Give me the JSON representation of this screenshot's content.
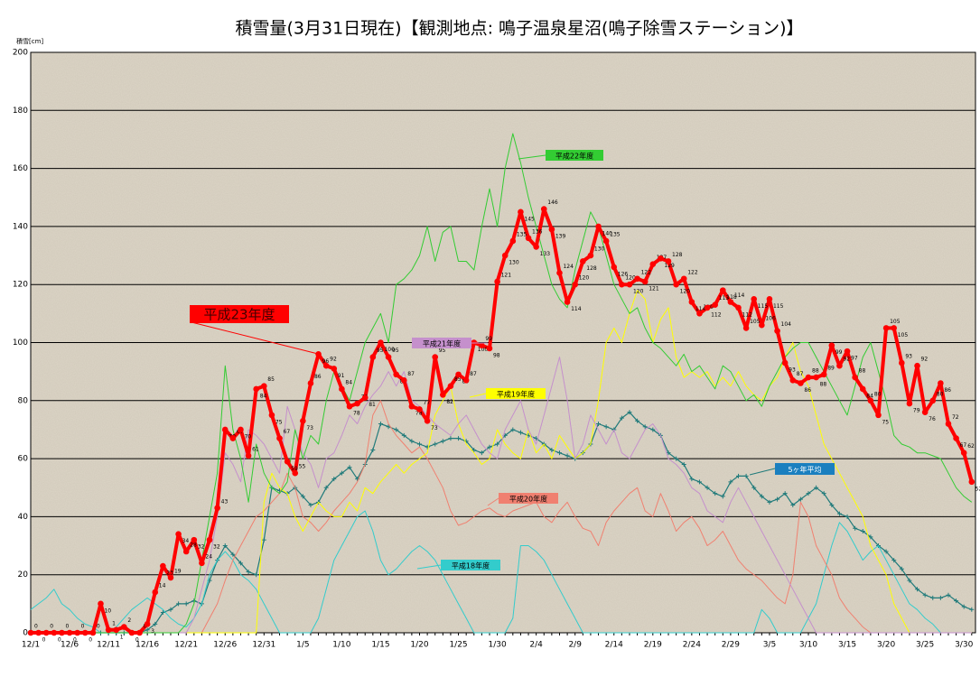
{
  "chart_data": {
    "type": "line",
    "title": "積雪量(3月31日現在)【観測地点: 鳴子温泉星沼(鳴子除雪ステーション)】",
    "y_label": "積雪[cm]",
    "ylim": [
      0,
      200
    ],
    "yticks": [
      0,
      20,
      40,
      60,
      80,
      100,
      120,
      140,
      160,
      180,
      200
    ],
    "grid": true,
    "categories": [
      "12/1",
      null,
      null,
      null,
      null,
      "12/6",
      null,
      null,
      null,
      null,
      "12/11",
      null,
      null,
      null,
      null,
      "12/16",
      null,
      null,
      null,
      null,
      "12/21",
      null,
      null,
      null,
      null,
      "12/26",
      null,
      null,
      null,
      null,
      "12/31",
      null,
      null,
      null,
      null,
      "1/5",
      null,
      null,
      null,
      null,
      "1/10",
      null,
      null,
      null,
      null,
      "1/15",
      null,
      null,
      null,
      null,
      "1/20",
      null,
      null,
      null,
      null,
      "1/25",
      null,
      null,
      null,
      null,
      "1/30",
      null,
      null,
      null,
      null,
      "2/4",
      null,
      null,
      null,
      null,
      "2/9",
      null,
      null,
      null,
      null,
      "2/14",
      null,
      null,
      null,
      null,
      "2/19",
      null,
      null,
      null,
      null,
      "2/24",
      null,
      null,
      null,
      null,
      "2/29",
      null,
      null,
      null,
      null,
      "3/5",
      null,
      null,
      null,
      null,
      "3/10",
      null,
      null,
      null,
      null,
      "3/15",
      null,
      null,
      null,
      null,
      "3/20",
      null,
      null,
      null,
      null,
      "3/25",
      null,
      null,
      null,
      null,
      "3/30",
      null
    ],
    "series": [
      {
        "name": "平成23年度",
        "color": "#ff0000",
        "values": [
          0,
          0,
          0,
          0,
          0,
          0,
          0,
          0,
          0,
          10,
          1,
          1,
          2,
          0,
          0,
          3,
          14,
          23,
          19,
          34,
          28,
          32,
          24,
          32,
          43,
          70,
          67,
          70,
          61,
          84,
          85,
          75,
          67,
          59,
          55,
          73,
          86,
          96,
          92,
          91,
          84,
          78,
          79,
          81,
          95,
          100,
          95,
          89,
          87,
          78,
          77,
          73,
          95,
          82,
          85,
          89,
          87,
          100,
          99,
          98,
          121,
          130,
          135,
          145,
          136,
          133,
          146,
          139,
          124,
          114,
          120,
          128,
          130,
          140,
          135,
          126,
          120,
          120,
          122,
          121,
          127,
          129,
          128,
          120,
          122,
          114,
          110,
          112,
          113,
          118,
          114,
          112,
          105,
          115,
          106,
          115,
          104,
          93,
          87,
          86,
          88,
          88,
          89,
          99,
          92,
          97,
          88,
          84,
          80,
          75,
          105,
          105,
          93,
          79,
          92,
          76,
          80,
          86,
          72,
          67,
          62,
          52
        ]
      },
      {
        "name": "平成22年度",
        "color": "#33cc33",
        "values": [
          0,
          0,
          0,
          0,
          0,
          0,
          0,
          0,
          0,
          0,
          0,
          0,
          0,
          0,
          0,
          0,
          0,
          0,
          0,
          0,
          3,
          10,
          25,
          40,
          55,
          92,
          70,
          60,
          45,
          65,
          55,
          50,
          48,
          52,
          70,
          60,
          68,
          65,
          80,
          90,
          85,
          80,
          90,
          100,
          105,
          110,
          100,
          120,
          122,
          125,
          130,
          140,
          128,
          138,
          140,
          128,
          128,
          125,
          140,
          153,
          140,
          160,
          172,
          162,
          150,
          140,
          130,
          120,
          115,
          112,
          125,
          135,
          145,
          140,
          130,
          120,
          115,
          110,
          112,
          105,
          100,
          98,
          95,
          92,
          96,
          90,
          92,
          88,
          84,
          92,
          90,
          85,
          80,
          82,
          78,
          85,
          90,
          95,
          98,
          100,
          100,
          95,
          90,
          85,
          80,
          75,
          85,
          95,
          100,
          90,
          80,
          68,
          65,
          64,
          62,
          62,
          61,
          60,
          55,
          50,
          47,
          45
        ]
      },
      {
        "name": "平成21年度",
        "color": "#c590cc",
        "values": [
          0,
          0,
          0,
          0,
          0,
          0,
          0,
          0,
          0,
          0,
          0,
          0,
          0,
          0,
          0,
          0,
          0,
          0,
          0,
          0,
          0,
          5,
          15,
          25,
          40,
          62,
          58,
          52,
          70,
          68,
          65,
          60,
          55,
          78,
          70,
          62,
          58,
          50,
          60,
          62,
          68,
          75,
          72,
          78,
          82,
          85,
          90,
          85,
          90,
          80,
          78,
          75,
          72,
          70,
          68,
          72,
          75,
          70,
          65,
          62,
          60,
          70,
          75,
          80,
          70,
          65,
          75,
          85,
          95,
          80,
          60,
          65,
          75,
          70,
          65,
          70,
          62,
          60,
          65,
          70,
          72,
          68,
          60,
          58,
          55,
          50,
          48,
          42,
          40,
          38,
          45,
          50,
          45,
          40,
          35,
          30,
          25,
          20,
          15,
          10,
          5,
          0,
          0,
          0,
          0,
          0,
          0,
          0,
          0,
          0,
          0,
          0,
          0,
          0,
          0,
          0,
          0,
          0,
          0,
          0,
          0,
          0
        ]
      },
      {
        "name": "平成19年度",
        "color": "#ffff00",
        "values": [
          0,
          0,
          0,
          0,
          0,
          0,
          0,
          0,
          0,
          0,
          0,
          0,
          0,
          0,
          0,
          0,
          0,
          0,
          0,
          0,
          0,
          0,
          0,
          0,
          0,
          0,
          0,
          0,
          0,
          0,
          45,
          55,
          50,
          48,
          40,
          35,
          40,
          45,
          42,
          40,
          40,
          45,
          42,
          50,
          48,
          52,
          55,
          58,
          55,
          58,
          60,
          62,
          75,
          80,
          85,
          72,
          65,
          62,
          58,
          60,
          70,
          65,
          62,
          60,
          70,
          62,
          65,
          60,
          68,
          64,
          60,
          62,
          65,
          80,
          100,
          105,
          100,
          110,
          118,
          115,
          100,
          108,
          112,
          95,
          88,
          90,
          88,
          90,
          85,
          88,
          85,
          90,
          85,
          82,
          80,
          85,
          88,
          95,
          100,
          90,
          85,
          75,
          65,
          60,
          55,
          50,
          45,
          40,
          30,
          25,
          20,
          10,
          5,
          0,
          0,
          0,
          0,
          0,
          0,
          0,
          0,
          0
        ]
      },
      {
        "name": "平成20年度",
        "color": "#f08070",
        "values": [
          0,
          0,
          0,
          0,
          0,
          0,
          0,
          0,
          0,
          0,
          0,
          0,
          0,
          0,
          0,
          0,
          0,
          0,
          0,
          0,
          0,
          0,
          0,
          5,
          10,
          18,
          25,
          30,
          35,
          40,
          42,
          45,
          48,
          55,
          50,
          40,
          38,
          35,
          38,
          42,
          45,
          48,
          52,
          58,
          75,
          80,
          72,
          68,
          65,
          62,
          64,
          60,
          55,
          50,
          42,
          37,
          38,
          40,
          42,
          43,
          41,
          40,
          42,
          43,
          44,
          45,
          40,
          38,
          42,
          45,
          40,
          36,
          35,
          30,
          38,
          42,
          45,
          48,
          50,
          42,
          40,
          48,
          42,
          35,
          38,
          40,
          36,
          30,
          32,
          35,
          30,
          25,
          22,
          20,
          18,
          15,
          12,
          10,
          20,
          45,
          40,
          30,
          25,
          20,
          12,
          8,
          5,
          2,
          0,
          0,
          0,
          0,
          0,
          0,
          0,
          0,
          0,
          0,
          0,
          0,
          0,
          0
        ]
      },
      {
        "name": "平成18年度",
        "color": "#33cccc",
        "values": [
          8,
          10,
          12,
          15,
          10,
          8,
          5,
          3,
          2,
          0,
          0,
          2,
          5,
          8,
          10,
          12,
          10,
          8,
          5,
          3,
          2,
          5,
          10,
          20,
          25,
          28,
          25,
          20,
          18,
          15,
          10,
          5,
          0,
          0,
          0,
          0,
          0,
          5,
          15,
          25,
          30,
          35,
          40,
          42,
          35,
          25,
          20,
          22,
          25,
          28,
          30,
          28,
          25,
          20,
          15,
          10,
          5,
          0,
          0,
          0,
          0,
          0,
          5,
          30,
          30,
          28,
          25,
          20,
          15,
          10,
          5,
          0,
          0,
          0,
          0,
          0,
          0,
          0,
          0,
          0,
          0,
          0,
          0,
          0,
          0,
          0,
          0,
          0,
          0,
          0,
          0,
          0,
          0,
          0,
          8,
          5,
          0,
          0,
          0,
          0,
          5,
          10,
          20,
          30,
          38,
          35,
          30,
          25,
          28,
          30,
          25,
          20,
          15,
          10,
          8,
          5,
          3,
          0,
          0,
          0,
          0,
          0
        ]
      },
      {
        "name": "5ヶ年平均",
        "color": "#1f7a7a",
        "values": [
          0,
          0,
          0,
          0,
          0,
          0,
          0,
          0,
          0,
          0,
          0,
          0,
          0,
          0,
          0,
          1,
          3,
          7,
          8,
          10,
          10,
          11,
          10,
          18,
          25,
          30,
          27,
          24,
          21,
          20,
          32,
          50,
          49,
          48,
          50,
          47,
          44,
          45,
          50,
          53,
          55,
          57,
          53,
          58,
          63,
          72,
          71,
          70,
          68,
          66,
          65,
          64,
          65,
          66,
          67,
          67,
          66,
          63,
          62,
          64,
          65,
          68,
          70,
          69,
          68,
          67,
          65,
          63,
          62,
          61,
          60,
          62,
          65,
          72,
          71,
          70,
          74,
          76,
          73,
          71,
          70,
          68,
          62,
          60,
          58,
          53,
          52,
          50,
          48,
          47,
          52,
          54,
          54,
          50,
          47,
          45,
          46,
          48,
          44,
          46,
          48,
          50,
          48,
          44,
          41,
          40,
          36,
          35,
          33,
          30,
          28,
          25,
          22,
          18,
          15,
          13,
          12,
          12,
          13,
          11,
          9,
          8
        ]
      }
    ]
  }
}
